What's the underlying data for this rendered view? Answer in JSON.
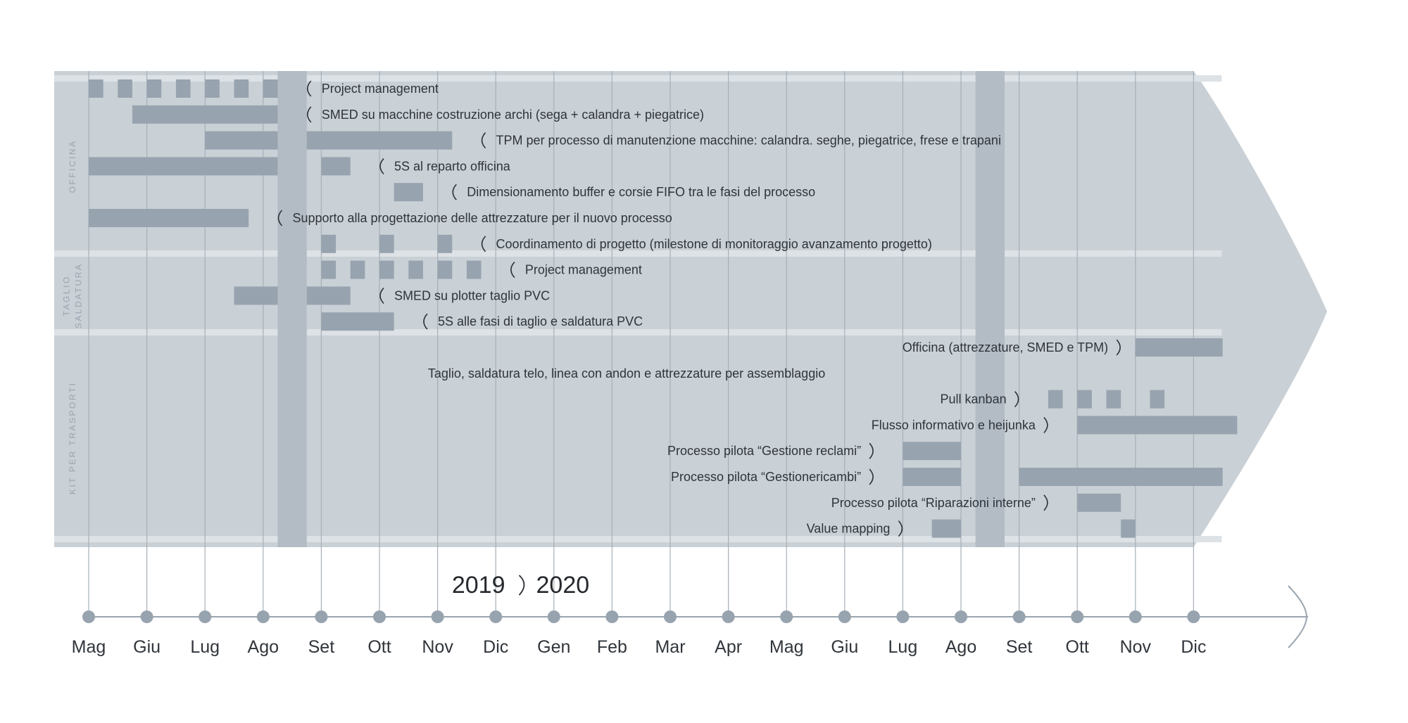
{
  "chart_data": {
    "type": "gantt",
    "years": [
      "2019",
      "2020"
    ],
    "months": [
      "Mag",
      "Giu",
      "Lug",
      "Ago",
      "Set",
      "Ott",
      "Nov",
      "Dic",
      "Gen",
      "Feb",
      "Mar",
      "Apr",
      "Mag",
      "Giu",
      "Lug",
      "Ago",
      "Set",
      "Ott",
      "Nov",
      "Dic"
    ],
    "highlight_periods": [
      [
        3.25,
        3.75
      ],
      [
        15.25,
        15.75
      ]
    ],
    "sections": [
      {
        "name": "OFFICINA",
        "rows": [
          0,
          6
        ]
      },
      {
        "name": "TAGLIO SALDATURA",
        "rows": [
          7,
          9
        ]
      },
      {
        "name": "KIT PER TRASPORTI",
        "rows": [
          10,
          17
        ]
      }
    ],
    "tasks": [
      {
        "label": "Project management",
        "side": "right",
        "label_at": 3.75,
        "bars": [
          [
            0,
            0.25
          ],
          [
            0.5,
            0.75
          ],
          [
            1,
            1.25
          ],
          [
            1.5,
            1.75
          ],
          [
            2,
            2.25
          ],
          [
            2.5,
            2.75
          ],
          [
            3,
            3.25
          ]
        ]
      },
      {
        "label": "SMED su macchine costruzione archi (sega + calandra + piegatrice)",
        "side": "right",
        "label_at": 3.75,
        "bars": [
          [
            0.75,
            3.25
          ]
        ]
      },
      {
        "label": "TPM per processo di manutenzione macchine: calandra. seghe, piegatrice, frese e trapani",
        "side": "right",
        "label_at": 6.75,
        "bars": [
          [
            2,
            3.25
          ],
          [
            3.75,
            6.25
          ]
        ]
      },
      {
        "label": "5S al reparto officina",
        "side": "right",
        "label_at": 5,
        "bars": [
          [
            0,
            3.25
          ],
          [
            4,
            4.5
          ]
        ]
      },
      {
        "label": "Dimensionamento buffer e corsie FIFO tra le fasi del processo",
        "side": "right",
        "label_at": 6.25,
        "bars": [
          [
            5.25,
            5.75
          ]
        ]
      },
      {
        "label": "Supporto alla progettazione delle attrezzature per il nuovo processo",
        "side": "right",
        "label_at": 3.25,
        "bars": [
          [
            0,
            2.75
          ]
        ]
      },
      {
        "label": "Coordinamento di progetto (milestone di monitoraggio avanzamento progetto)",
        "side": "right",
        "label_at": 6.75,
        "bars": [
          [
            4,
            4.25
          ],
          [
            5,
            5.25
          ],
          [
            6,
            6.25
          ]
        ]
      },
      {
        "label": "Project management",
        "side": "right",
        "label_at": 7.25,
        "bars": [
          [
            4,
            4.25
          ],
          [
            4.5,
            4.75
          ],
          [
            5,
            5.25
          ],
          [
            5.5,
            5.75
          ],
          [
            6,
            6.25
          ],
          [
            6.5,
            6.75
          ]
        ]
      },
      {
        "label": "SMED su plotter taglio PVC",
        "side": "right",
        "label_at": 5,
        "bars": [
          [
            2.5,
            3.25
          ],
          [
            3.75,
            4.5
          ]
        ]
      },
      {
        "label": "5S alle fasi di taglio e saldatura PVC",
        "side": "right",
        "label_at": 5.75,
        "bars": [
          [
            4,
            5.25
          ]
        ]
      },
      {
        "label": "Officina (attrezzature, SMED e TPM)",
        "side": "left",
        "label_at": 17.75,
        "bars": [
          [
            18,
            19.5
          ]
        ]
      },
      {
        "label": "Taglio, saldatura telo, linea con andon e attrezzature per assemblaggio",
        "side": "center",
        "label_at": 9.25,
        "bars": []
      },
      {
        "label": "Pull kanban",
        "side": "left",
        "label_at": 16,
        "bars": [
          [
            16.5,
            16.75
          ],
          [
            17,
            17.25
          ],
          [
            17.5,
            17.75
          ],
          [
            18.25,
            18.5
          ]
        ]
      },
      {
        "label": "Flusso informativo e heijunka",
        "side": "left",
        "label_at": 16.5,
        "bars": [
          [
            17,
            19.75
          ]
        ]
      },
      {
        "label": "Processo pilota “Gestione reclami”",
        "side": "left",
        "label_at": 13.5,
        "bars": [
          [
            14,
            15
          ]
        ]
      },
      {
        "label": "Processo pilota “Gestionericambi”",
        "side": "left",
        "label_at": 13.5,
        "bars": [
          [
            14,
            15
          ],
          [
            16,
            19.5
          ]
        ]
      },
      {
        "label": "Processo pilota “Riparazioni interne”",
        "side": "left",
        "label_at": 16.5,
        "bars": [
          [
            17,
            17.75
          ]
        ]
      },
      {
        "label": "Value mapping",
        "side": "left",
        "label_at": 14,
        "bars": [
          [
            14.5,
            15
          ],
          [
            17.75,
            18
          ]
        ]
      }
    ]
  }
}
